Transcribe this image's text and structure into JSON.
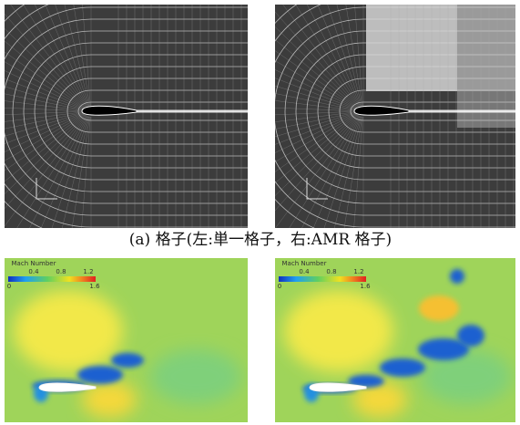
{
  "figure": {
    "caption": "(a) 格子(左:単一格子，右:AMR 格子)",
    "panels": [
      {
        "colorbar": {
          "title": "Mach Number",
          "ticks": [
            "0.4",
            "0.8",
            "1.2"
          ],
          "min": "0",
          "max": "1.6"
        }
      },
      {
        "colorbar": {
          "title": "Mach Number",
          "ticks": [
            "0.4",
            "0.8",
            "1.2"
          ],
          "min": "0",
          "max": "1.6"
        }
      }
    ]
  }
}
